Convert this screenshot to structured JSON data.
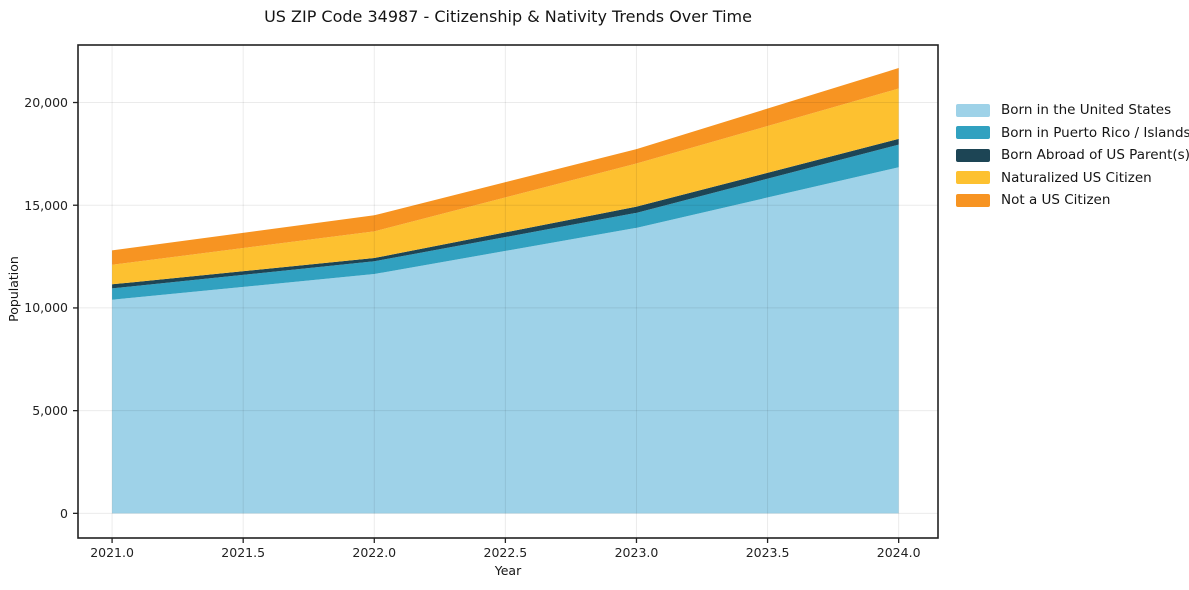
{
  "page": {
    "background": "#ffffff"
  },
  "chart_data": {
    "type": "area",
    "stacked": true,
    "title": "US ZIP Code 34987 - Citizenship & Nativity Trends Over Time",
    "xlabel": "Year",
    "ylabel": "Population",
    "x": [
      2021,
      2022,
      2023,
      2024
    ],
    "series": [
      {
        "name": "Born in the United States",
        "color": "#9ed2e8",
        "values": [
          10400,
          11650,
          13900,
          16850
        ]
      },
      {
        "name": "Born in Puerto Rico / Islands",
        "color": "#31a1c0",
        "values": [
          550,
          620,
          730,
          1100
        ]
      },
      {
        "name": "Born Abroad of US Parent(s)",
        "color": "#1d4555",
        "values": [
          200,
          160,
          300,
          280
        ]
      },
      {
        "name": "Naturalized US Citizen",
        "color": "#fdc130",
        "values": [
          950,
          1300,
          2100,
          2450
        ]
      },
      {
        "name": "Not a US Citizen",
        "color": "#f79422",
        "values": [
          700,
          780,
          700,
          1000
        ]
      }
    ],
    "totals": [
      12800,
      14510,
      17730,
      21680
    ],
    "x_ticks": {
      "values": [
        2021.0,
        2021.5,
        2022.0,
        2022.5,
        2023.0,
        2023.5,
        2024.0
      ],
      "labels": [
        "2021.0",
        "2021.5",
        "2022.0",
        "2022.5",
        "2023.0",
        "2023.5",
        "2024.0"
      ]
    },
    "y_ticks": {
      "values": [
        0,
        5000,
        10000,
        15000,
        20000
      ],
      "labels": [
        "0",
        "5,000",
        "10,000",
        "15,000",
        "20,000"
      ]
    },
    "xlim": [
      2020.87,
      2024.15
    ],
    "ylim": [
      -1200,
      22800
    ],
    "grid": true,
    "legend_position": "right"
  },
  "style": {
    "grid_color": "rgba(0,0,0,0.08)",
    "spine_color": "#222222",
    "tick_color": "#222222",
    "text_color": "#151515"
  }
}
